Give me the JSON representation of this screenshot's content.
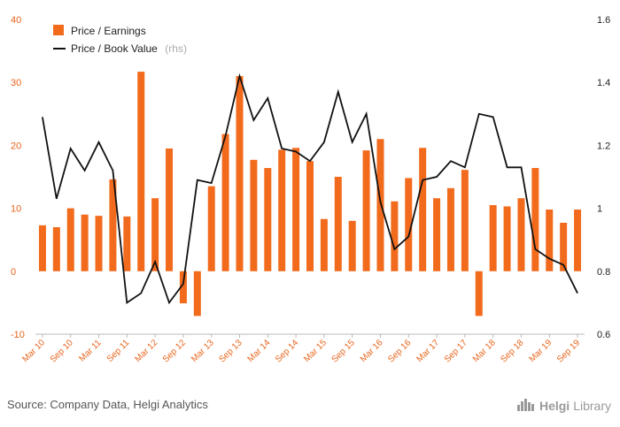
{
  "chart_data": {
    "type": "bar",
    "categories": [
      "Mar 10",
      "Jun 10",
      "Sep 10",
      "Dec 10",
      "Mar 11",
      "Jun 11",
      "Sep 11",
      "Dec 11",
      "Mar 12",
      "Jun 12",
      "Sep 12",
      "Dec 12",
      "Mar 13",
      "Jun 13",
      "Sep 13",
      "Dec 13",
      "Mar 14",
      "Jun 14",
      "Sep 14",
      "Dec 14",
      "Mar 15",
      "Jun 15",
      "Sep 15",
      "Dec 15",
      "Mar 16",
      "Jun 16",
      "Sep 16",
      "Dec 16",
      "Mar 17",
      "Jun 17",
      "Sep 17",
      "Dec 17",
      "Mar 18",
      "Jun 18",
      "Sep 18",
      "Dec 18",
      "Mar 19",
      "Jun 19",
      "Sep 19"
    ],
    "tick_labels": [
      "Mar 10",
      "Sep 10",
      "Mar 11",
      "Sep 11",
      "Mar 12",
      "Sep 12",
      "Mar 13",
      "Sep 13",
      "Mar 14",
      "Sep 14",
      "Mar 15",
      "Sep 15",
      "Mar 16",
      "Sep 16",
      "Mar 17",
      "Sep 17",
      "Mar 18",
      "Sep 18",
      "Mar 19",
      "Sep 19"
    ],
    "series": [
      {
        "name": "Price / Earnings",
        "type": "bar",
        "axis": "left",
        "color": "#f26b1d",
        "values": [
          7.3,
          7.0,
          10.0,
          9.0,
          8.8,
          14.6,
          8.7,
          31.7,
          11.6,
          19.5,
          -5.1,
          -7.1,
          13.5,
          21.8,
          31.0,
          17.7,
          16.4,
          19.3,
          19.6,
          17.5,
          8.3,
          15.0,
          8.0,
          19.2,
          21.0,
          11.1,
          14.8,
          19.6,
          11.6,
          13.2,
          16.1,
          -7.1,
          10.5,
          10.3,
          11.6,
          16.4,
          9.8,
          7.7,
          9.8
        ]
      },
      {
        "name": "Price / Book Value",
        "type": "line",
        "axis": "right",
        "color": "#111111",
        "values": [
          1.29,
          1.03,
          1.19,
          1.12,
          1.21,
          1.12,
          0.7,
          0.73,
          0.83,
          0.7,
          0.76,
          1.09,
          1.08,
          1.23,
          1.42,
          1.28,
          1.35,
          1.19,
          1.18,
          1.15,
          1.21,
          1.37,
          1.21,
          1.3,
          1.02,
          0.87,
          0.91,
          1.09,
          1.1,
          1.15,
          1.13,
          1.3,
          1.29,
          1.13,
          1.13,
          0.87,
          0.84,
          0.82,
          0.73
        ]
      }
    ],
    "legend": {
      "bar_label": "Price / Earnings",
      "line_label": "Price / Book Value",
      "line_suffix": "(rhs)",
      "placement": "top-left"
    },
    "y_left": {
      "min": -10,
      "max": 40,
      "ticks": [
        "40",
        "30",
        "20",
        "10",
        "0",
        "-10"
      ],
      "tick_values": [
        40,
        30,
        20,
        10,
        0,
        -10
      ]
    },
    "y_right": {
      "min": 0.6,
      "max": 1.6,
      "ticks": [
        "1.6",
        "1.4",
        "1.2",
        "1",
        "0.8",
        "0.6"
      ],
      "tick_values": [
        1.6,
        1.4,
        1.2,
        1.0,
        0.8,
        0.6
      ]
    },
    "grid": false
  },
  "footer": {
    "source": "Source: Company Data, Helgi Analytics",
    "brand_bold": "Helgi",
    "brand_light": "Library"
  },
  "colors": {
    "accent": "#f26b1d",
    "line": "#111111",
    "axis_text_left": "#e8641b"
  }
}
